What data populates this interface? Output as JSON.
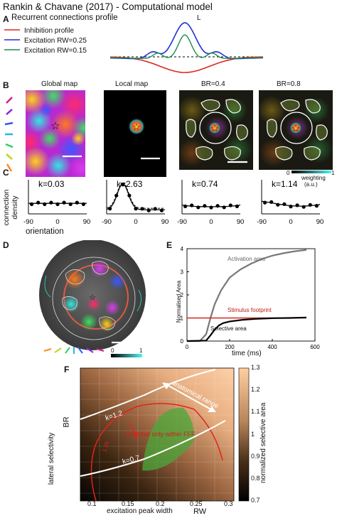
{
  "title": "Rankin & Chavane (2017) - Computational model",
  "panelA": {
    "label": "A",
    "heading": "Recurrent connections profile",
    "scale_label": "L",
    "legend": [
      {
        "label": "Inhibition profile",
        "color": "#e0241b"
      },
      {
        "label": "Excitation RW=0.25",
        "color": "#1d2fd6"
      },
      {
        "label": "Excitation RW=0.15",
        "color": "#1e8a4c"
      }
    ]
  },
  "panelB": {
    "label": "B",
    "maps": [
      "Global map",
      "Local map",
      "BR=0.4",
      "BR=0.8"
    ],
    "colorbar_min": "0",
    "colorbar_max": "1",
    "colorbar_label": "weighting",
    "colorbar_unit": "(a.u.)"
  },
  "panelC": {
    "label": "C",
    "ylabel": "connection density",
    "ylabel_line1": "connection",
    "ylabel_line2": "density",
    "xlabel": "orientation",
    "ticks": [
      "-90",
      "0",
      "90"
    ],
    "k_values": [
      "k=0.03",
      "k=2.63",
      "k=0.74",
      "k=1.14"
    ]
  },
  "panelD": {
    "label": "D",
    "colorbar_min": "0",
    "colorbar_max": "1"
  },
  "panelE": {
    "label": "E",
    "ylabel": "Normalised Area",
    "xlabel": "time (ms)",
    "yticks": [
      "0",
      "1",
      "2",
      "3",
      "4"
    ],
    "xticks": [
      "0",
      "200",
      "400",
      "600"
    ],
    "series_labels": {
      "activation": "Activation area",
      "stimulus": "Stimulus footprint",
      "selective": "Selective area"
    },
    "chart_data": {
      "type": "line",
      "xlabel": "time (ms)",
      "ylabel": "Normalised Area",
      "xlim": [
        0,
        600
      ],
      "ylim": [
        0,
        4
      ],
      "series": [
        {
          "name": "Activation area",
          "color": "#777777",
          "x": [
            0,
            60,
            90,
            110,
            130,
            160,
            200,
            250,
            300,
            350,
            400,
            450,
            500,
            560
          ],
          "y": [
            0,
            0,
            0.3,
            1.0,
            1.6,
            2.2,
            2.75,
            3.1,
            3.35,
            3.55,
            3.7,
            3.8,
            3.88,
            3.95
          ]
        },
        {
          "name": "Stimulus footprint",
          "color": "#e0241b",
          "x": [
            0,
            560
          ],
          "y": [
            1,
            1
          ]
        },
        {
          "name": "Selective area",
          "color": "#000000",
          "x": [
            0,
            90,
            110,
            130,
            150,
            170,
            200,
            260,
            320,
            400,
            480,
            560
          ],
          "y": [
            0,
            0.02,
            0.25,
            0.5,
            0.68,
            0.78,
            0.85,
            0.92,
            0.96,
            0.99,
            1.0,
            1.02
          ]
        }
      ]
    }
  },
  "panelF": {
    "label": "F",
    "ylabel_left": "lateral selectivity",
    "ylabel_short": "BR",
    "xlabel": "excitation peak width",
    "xlabel_short": "RW",
    "colorbar_label": "normalized selective area",
    "colorbar_ticks": [
      "1.3",
      "1.2",
      "1.1",
      "1",
      "0.9",
      "0.8",
      "0.7"
    ],
    "xticks": [
      "0.1",
      "0.15",
      "0.2",
      "0.25",
      "0.3"
    ],
    "annotations": {
      "k1": "k=1.2",
      "k2": "k=0.7",
      "range": "anatomical range",
      "inset": "selective only within FFF",
      "contour": "1.05"
    }
  }
}
